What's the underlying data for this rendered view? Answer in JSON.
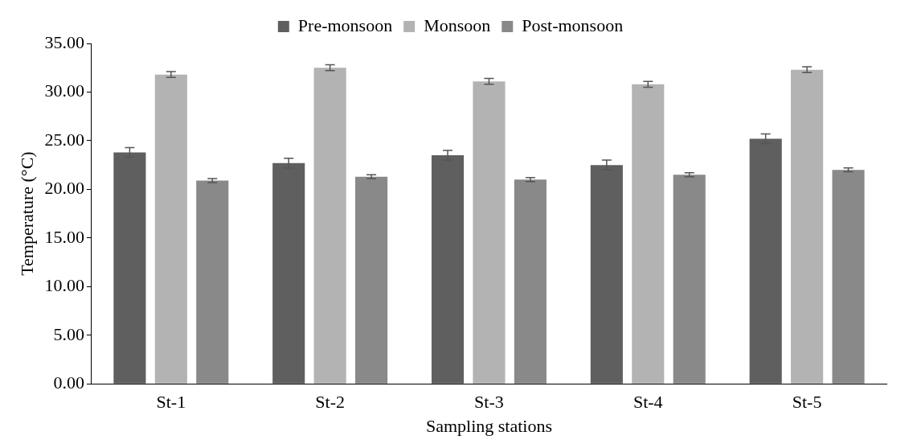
{
  "chart_data": {
    "type": "bar",
    "xlabel": "Sampling stations",
    "ylabel": "Temperature (°C)",
    "categories": [
      "St-1",
      "St-2",
      "St-3",
      "St-4",
      "St-5"
    ],
    "series": [
      {
        "name": "Pre-monsoon",
        "color": "#5f5f5f",
        "values": [
          23.8,
          22.7,
          23.5,
          22.5,
          25.2
        ],
        "errors": [
          0.5,
          0.5,
          0.5,
          0.5,
          0.5
        ]
      },
      {
        "name": "Monsoon",
        "color": "#b3b3b3",
        "values": [
          31.8,
          32.5,
          31.1,
          30.8,
          32.3
        ],
        "errors": [
          0.3,
          0.3,
          0.3,
          0.3,
          0.3
        ]
      },
      {
        "name": "Post-monsoon",
        "color": "#898989",
        "values": [
          20.9,
          21.3,
          21.0,
          21.5,
          22.0
        ],
        "errors": [
          0.2,
          0.2,
          0.2,
          0.2,
          0.2
        ]
      }
    ],
    "ylim": [
      0,
      35
    ],
    "yticks": [
      {
        "value": 0,
        "label": "0.00"
      },
      {
        "value": 5,
        "label": "5.00"
      },
      {
        "value": 10,
        "label": "10.00"
      },
      {
        "value": 15,
        "label": "15.00"
      },
      {
        "value": 20,
        "label": "20.00"
      },
      {
        "value": 25,
        "label": "25.00"
      },
      {
        "value": 30,
        "label": "30.00"
      },
      {
        "value": 35,
        "label": "35.00"
      }
    ],
    "grid": false,
    "legend": "top"
  }
}
